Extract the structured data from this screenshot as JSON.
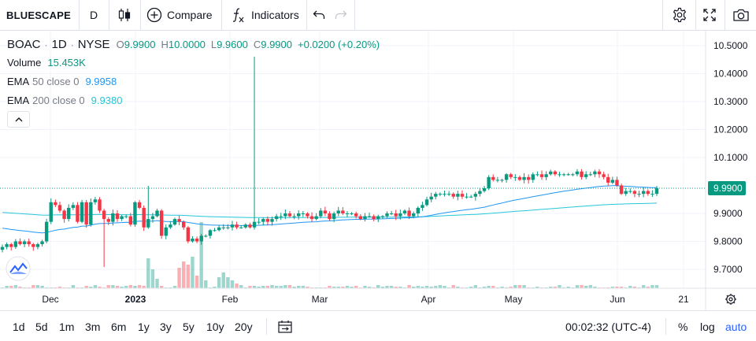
{
  "toolbar": {
    "symbol": "BLUESCAPE",
    "interval": "D",
    "compare_label": "Compare",
    "indicators_label": "Indicators",
    "icons": [
      "candles-icon",
      "plus-circle-icon",
      "function-icon",
      "undo-icon",
      "redo-icon",
      "gear-icon",
      "fullscreen-icon",
      "camera-icon"
    ]
  },
  "legend": {
    "ticker": "BOAC",
    "interval": "1D",
    "exchange": "NYSE",
    "open_label": "O",
    "open": "9.9900",
    "high_label": "H",
    "high": "10.0000",
    "low_label": "L",
    "low": "9.9600",
    "close_label": "C",
    "close": "9.9900",
    "change": "+0.0200 (+0.20%)",
    "volume_label": "Volume",
    "volume": "15.453K",
    "ema50_label": "EMA",
    "ema50_params": "50 close 0",
    "ema50_value": "9.9958",
    "ema200_label": "EMA",
    "ema200_params": "200 close 0",
    "ema200_value": "9.9380"
  },
  "bottombar": {
    "ranges": [
      "1d",
      "5d",
      "1m",
      "3m",
      "6m",
      "1y",
      "3y",
      "5y",
      "10y",
      "20y"
    ],
    "clock": "00:02:32 (UTC-4)",
    "percent_label": "%",
    "log_label": "log",
    "auto_label": "auto"
  },
  "colors": {
    "up": "#089981",
    "down": "#f23645",
    "ema50": "#2196f3",
    "ema200": "#26c6da",
    "price_label_bg": "#089981"
  },
  "chart_data": {
    "type": "candlestick",
    "symbol": "BOAC",
    "exchange": "NYSE",
    "interval": "1D",
    "x_axis_labels": [
      "Dec",
      "2023",
      "Feb",
      "Mar",
      "Apr",
      "May",
      "Jun",
      "21"
    ],
    "y_axis_labels": [
      "10.5000",
      "10.4000",
      "10.3000",
      "10.2000",
      "10.1000",
      "9.9000",
      "9.8000",
      "9.7000"
    ],
    "ylim": [
      9.67,
      10.53
    ],
    "last_price": "9.9900",
    "candles_close": [
      9.78,
      9.79,
      9.78,
      9.8,
      9.79,
      9.8,
      9.79,
      9.78,
      9.79,
      9.8,
      9.87,
      9.94,
      9.93,
      9.91,
      9.88,
      9.92,
      9.93,
      9.87,
      9.94,
      9.86,
      9.94,
      9.95,
      9.91,
      9.88,
      9.87,
      9.9,
      9.88,
      9.89,
      9.89,
      9.86,
      9.94,
      9.92,
      9.85,
      9.88,
      9.89,
      9.91,
      9.82,
      9.85,
      9.86,
      9.88,
      9.87,
      9.85,
      9.8,
      9.81,
      9.8,
      9.82,
      9.82,
      9.84,
      9.84,
      9.85,
      9.85,
      9.85,
      9.86,
      9.85,
      9.85,
      9.86,
      9.85,
      9.87,
      9.87,
      9.88,
      9.87,
      9.88,
      9.89,
      9.89,
      9.9,
      9.89,
      9.89,
      9.9,
      9.9,
      9.89,
      9.88,
      9.89,
      9.91,
      9.9,
      9.88,
      9.9,
      9.91,
      9.9,
      9.9,
      9.9,
      9.89,
      9.88,
      9.89,
      9.89,
      9.88,
      9.89,
      9.89,
      9.9,
      9.9,
      9.89,
      9.9,
      9.91,
      9.89,
      9.9,
      9.92,
      9.93,
      9.95,
      9.96,
      9.97,
      9.97,
      9.97,
      9.97,
      9.96,
      9.97,
      9.96,
      9.96,
      9.96,
      9.97,
      9.98,
      9.99,
      10.03,
      10.02,
      10.02,
      10.02,
      10.04,
      10.03,
      10.03,
      10.02,
      10.03,
      10.02,
      10.04,
      10.04,
      10.03,
      10.04,
      10.05,
      10.04,
      10.04,
      10.04,
      10.04,
      10.04,
      10.05,
      10.03,
      10.04,
      10.04,
      10.05,
      10.04,
      10.03,
      10.01,
      10.02,
      10.0,
      9.97,
      9.98,
      9.98,
      9.97,
      9.97,
      9.98,
      9.97,
      9.97,
      9.99
    ],
    "volume_label": "15.453K",
    "ema50_last": 9.9958,
    "ema200_last": 9.938
  }
}
